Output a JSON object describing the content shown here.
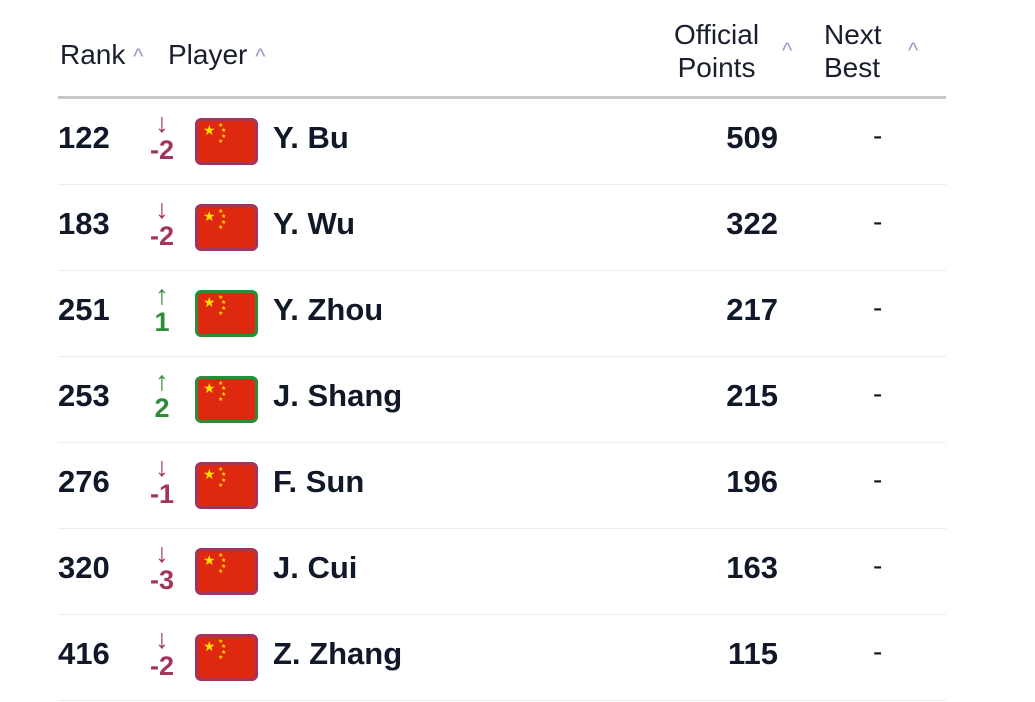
{
  "header": {
    "rank": "Rank",
    "player": "Player",
    "points_line1": "Official",
    "points_line2": "Points",
    "next_line1": "Next",
    "next_line2": "Best",
    "sort_icon": "chevron-up-icon"
  },
  "colors": {
    "down": "#a3345f",
    "up": "#2f8a3a"
  },
  "rows": [
    {
      "rank": "122",
      "dir": "down",
      "move": "-2",
      "flag": "china-flag",
      "name": "Y. Bu",
      "points": "509",
      "next_best": "-"
    },
    {
      "rank": "183",
      "dir": "down",
      "move": "-2",
      "flag": "china-flag",
      "name": "Y. Wu",
      "points": "322",
      "next_best": "-"
    },
    {
      "rank": "251",
      "dir": "up",
      "move": "1",
      "flag": "china-flag",
      "name": "Y. Zhou",
      "points": "217",
      "next_best": "-"
    },
    {
      "rank": "253",
      "dir": "up",
      "move": "2",
      "flag": "china-flag",
      "name": "J. Shang",
      "points": "215",
      "next_best": "-"
    },
    {
      "rank": "276",
      "dir": "down",
      "move": "-1",
      "flag": "china-flag",
      "name": "F. Sun",
      "points": "196",
      "next_best": "-"
    },
    {
      "rank": "320",
      "dir": "down",
      "move": "-3",
      "flag": "china-flag",
      "name": "J. Cui",
      "points": "163",
      "next_best": "-"
    },
    {
      "rank": "416",
      "dir": "down",
      "move": "-2",
      "flag": "china-flag",
      "name": "Z. Zhang",
      "points": "115",
      "next_best": "-"
    }
  ]
}
